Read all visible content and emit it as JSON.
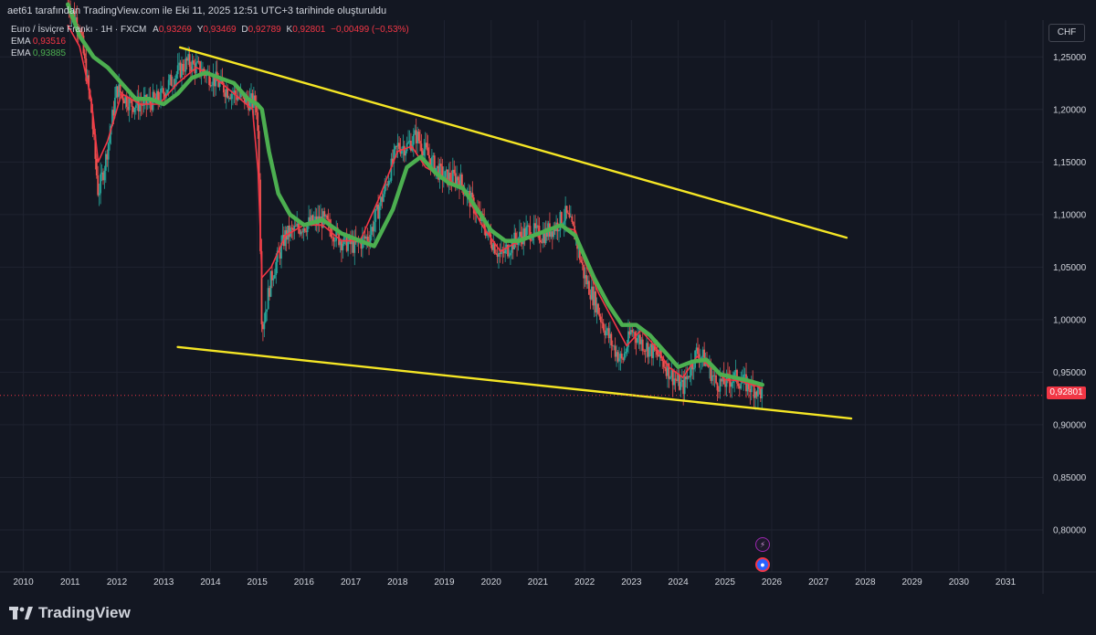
{
  "header": {
    "caption": "aet61 tarafından TradingView.com ile Eki 11, 2025 12:51 UTC+3 tarihinde oluşturuldu"
  },
  "legend": {
    "symbol": "Euro / İsviçre Frankı · 1H · FXCM",
    "open_label": "A",
    "open": "0,93269",
    "high_label": "Y",
    "high": "0,93469",
    "low_label": "D",
    "low": "0,92789",
    "close_label": "K",
    "close": "0,92801",
    "change": "−0,00499 (−0,53%)",
    "ema1_label": "EMA",
    "ema1_value": "0,93516",
    "ema2_label": "EMA",
    "ema2_value": "0,93885"
  },
  "toolbar": {
    "currency": "CHF"
  },
  "price_tag": "0,92801",
  "brand": {
    "name": "TradingView"
  },
  "colors": {
    "background": "#131722",
    "grid": "#1f2330",
    "trendline": "#f5e625",
    "ema_fast": "#f23645",
    "ema_slow": "#4caf50",
    "candle_up": "#26a69a",
    "candle_down": "#ef5350",
    "last_price": "#f23645"
  },
  "chart_data": {
    "type": "line",
    "ylim": [
      0.76,
      1.285
    ],
    "xlim": [
      2009.5,
      2031.8
    ],
    "y_ticks": [
      {
        "v": 1.25,
        "label": "1,25000"
      },
      {
        "v": 1.2,
        "label": "1,20000"
      },
      {
        "v": 1.15,
        "label": "1,15000"
      },
      {
        "v": 1.1,
        "label": "1,10000"
      },
      {
        "v": 1.05,
        "label": "1,05000"
      },
      {
        "v": 1.0,
        "label": "1,00000"
      },
      {
        "v": 0.95,
        "label": "0,95000"
      },
      {
        "v": 0.9,
        "label": "0,90000"
      },
      {
        "v": 0.85,
        "label": "0,85000"
      },
      {
        "v": 0.8,
        "label": "0,80000"
      }
    ],
    "x_ticks": [
      "2010",
      "2011",
      "2012",
      "2013",
      "2014",
      "2015",
      "2016",
      "2017",
      "2018",
      "2019",
      "2020",
      "2021",
      "2022",
      "2023",
      "2024",
      "2025",
      "2026",
      "2027",
      "2028",
      "2029",
      "2030",
      "2031"
    ],
    "last_price": 0.92801,
    "series": [
      {
        "name": "EMA",
        "kind": "price",
        "x": [
          2010.95,
          2011.2,
          2011.45,
          2011.6,
          2011.75,
          2012.0,
          2012.3,
          2012.6,
          2012.9,
          2013.2,
          2013.5,
          2013.9,
          2014.3,
          2014.7,
          2014.98,
          2015.03,
          2015.1,
          2015.3,
          2015.6,
          2016.0,
          2016.4,
          2016.8,
          2017.1,
          2017.4,
          2017.7,
          2018.0,
          2018.2,
          2018.4,
          2018.6,
          2018.8,
          2019.0,
          2019.3,
          2019.6,
          2019.9,
          2020.2,
          2020.5,
          2020.8,
          2021.1,
          2021.4,
          2021.6,
          2021.8,
          2022.0,
          2022.2,
          2022.4,
          2022.6,
          2022.8,
          2023.0,
          2023.3,
          2023.6,
          2023.9,
          2024.1,
          2024.4,
          2024.6,
          2024.8,
          2025.0,
          2025.2,
          2025.4,
          2025.6,
          2025.8
        ],
        "y": [
          1.3,
          1.28,
          1.2,
          1.12,
          1.15,
          1.22,
          1.205,
          1.205,
          1.21,
          1.23,
          1.245,
          1.235,
          1.22,
          1.21,
          1.205,
          1.16,
          0.99,
          1.04,
          1.08,
          1.09,
          1.095,
          1.075,
          1.07,
          1.08,
          1.12,
          1.165,
          1.165,
          1.175,
          1.16,
          1.145,
          1.135,
          1.135,
          1.11,
          1.085,
          1.06,
          1.075,
          1.085,
          1.08,
          1.09,
          1.1,
          1.08,
          1.04,
          1.02,
          0.995,
          0.975,
          0.96,
          0.99,
          0.975,
          0.965,
          0.945,
          0.935,
          0.97,
          0.96,
          0.94,
          0.94,
          0.945,
          0.94,
          0.935,
          0.93
        ]
      },
      {
        "name": "EMA",
        "kind": "ema-fast",
        "x": [
          2010.95,
          2011.2,
          2011.45,
          2011.6,
          2011.8,
          2012.1,
          2012.5,
          2012.9,
          2013.3,
          2013.7,
          2014.1,
          2014.5,
          2014.9,
          2015.02,
          2015.1,
          2015.3,
          2015.6,
          2016.0,
          2016.4,
          2016.8,
          2017.2,
          2017.6,
          2018.0,
          2018.3,
          2018.6,
          2019.0,
          2019.4,
          2019.8,
          2020.2,
          2020.6,
          2021.0,
          2021.4,
          2021.8,
          2022.0,
          2022.3,
          2022.6,
          2022.9,
          2023.2,
          2023.5,
          2023.8,
          2024.1,
          2024.4,
          2024.7,
          2025.0,
          2025.3,
          2025.6,
          2025.8
        ],
        "y": [
          1.28,
          1.26,
          1.21,
          1.15,
          1.17,
          1.215,
          1.205,
          1.205,
          1.225,
          1.24,
          1.23,
          1.215,
          1.2,
          1.14,
          1.04,
          1.05,
          1.08,
          1.09,
          1.09,
          1.075,
          1.075,
          1.115,
          1.16,
          1.165,
          1.145,
          1.135,
          1.125,
          1.09,
          1.065,
          1.075,
          1.08,
          1.09,
          1.085,
          1.055,
          1.025,
          1.0,
          0.975,
          0.99,
          0.975,
          0.955,
          0.945,
          0.965,
          0.955,
          0.943,
          0.942,
          0.938,
          0.935
        ]
      },
      {
        "name": "EMA",
        "kind": "ema-slow",
        "x": [
          2010.95,
          2011.2,
          2011.5,
          2011.8,
          2012.1,
          2012.4,
          2012.7,
          2013.0,
          2013.3,
          2013.6,
          2013.9,
          2014.2,
          2014.5,
          2014.8,
          2015.0,
          2015.1,
          2015.25,
          2015.45,
          2015.7,
          2016.0,
          2016.4,
          2016.8,
          2017.2,
          2017.5,
          2017.9,
          2018.2,
          2018.5,
          2018.8,
          2019.1,
          2019.4,
          2019.7,
          2020.0,
          2020.3,
          2020.6,
          2020.9,
          2021.2,
          2021.5,
          2021.8,
          2022.0,
          2022.2,
          2022.5,
          2022.8,
          2023.1,
          2023.4,
          2023.7,
          2024.0,
          2024.3,
          2024.6,
          2024.9,
          2025.2,
          2025.5,
          2025.8
        ],
        "y": [
          1.3,
          1.27,
          1.25,
          1.24,
          1.225,
          1.21,
          1.21,
          1.205,
          1.215,
          1.23,
          1.235,
          1.23,
          1.225,
          1.21,
          1.205,
          1.2,
          1.16,
          1.12,
          1.1,
          1.09,
          1.095,
          1.082,
          1.075,
          1.07,
          1.105,
          1.145,
          1.155,
          1.14,
          1.13,
          1.125,
          1.105,
          1.085,
          1.075,
          1.075,
          1.08,
          1.085,
          1.09,
          1.08,
          1.06,
          1.04,
          1.015,
          0.995,
          0.995,
          0.985,
          0.97,
          0.955,
          0.96,
          0.962,
          0.948,
          0.945,
          0.942,
          0.938
        ]
      }
    ],
    "trendlines": [
      {
        "x": [
          2013.35,
          2027.6
        ],
        "y": [
          1.259,
          1.078
        ]
      },
      {
        "x": [
          2013.3,
          2027.7
        ],
        "y": [
          0.974,
          0.906
        ]
      }
    ]
  }
}
